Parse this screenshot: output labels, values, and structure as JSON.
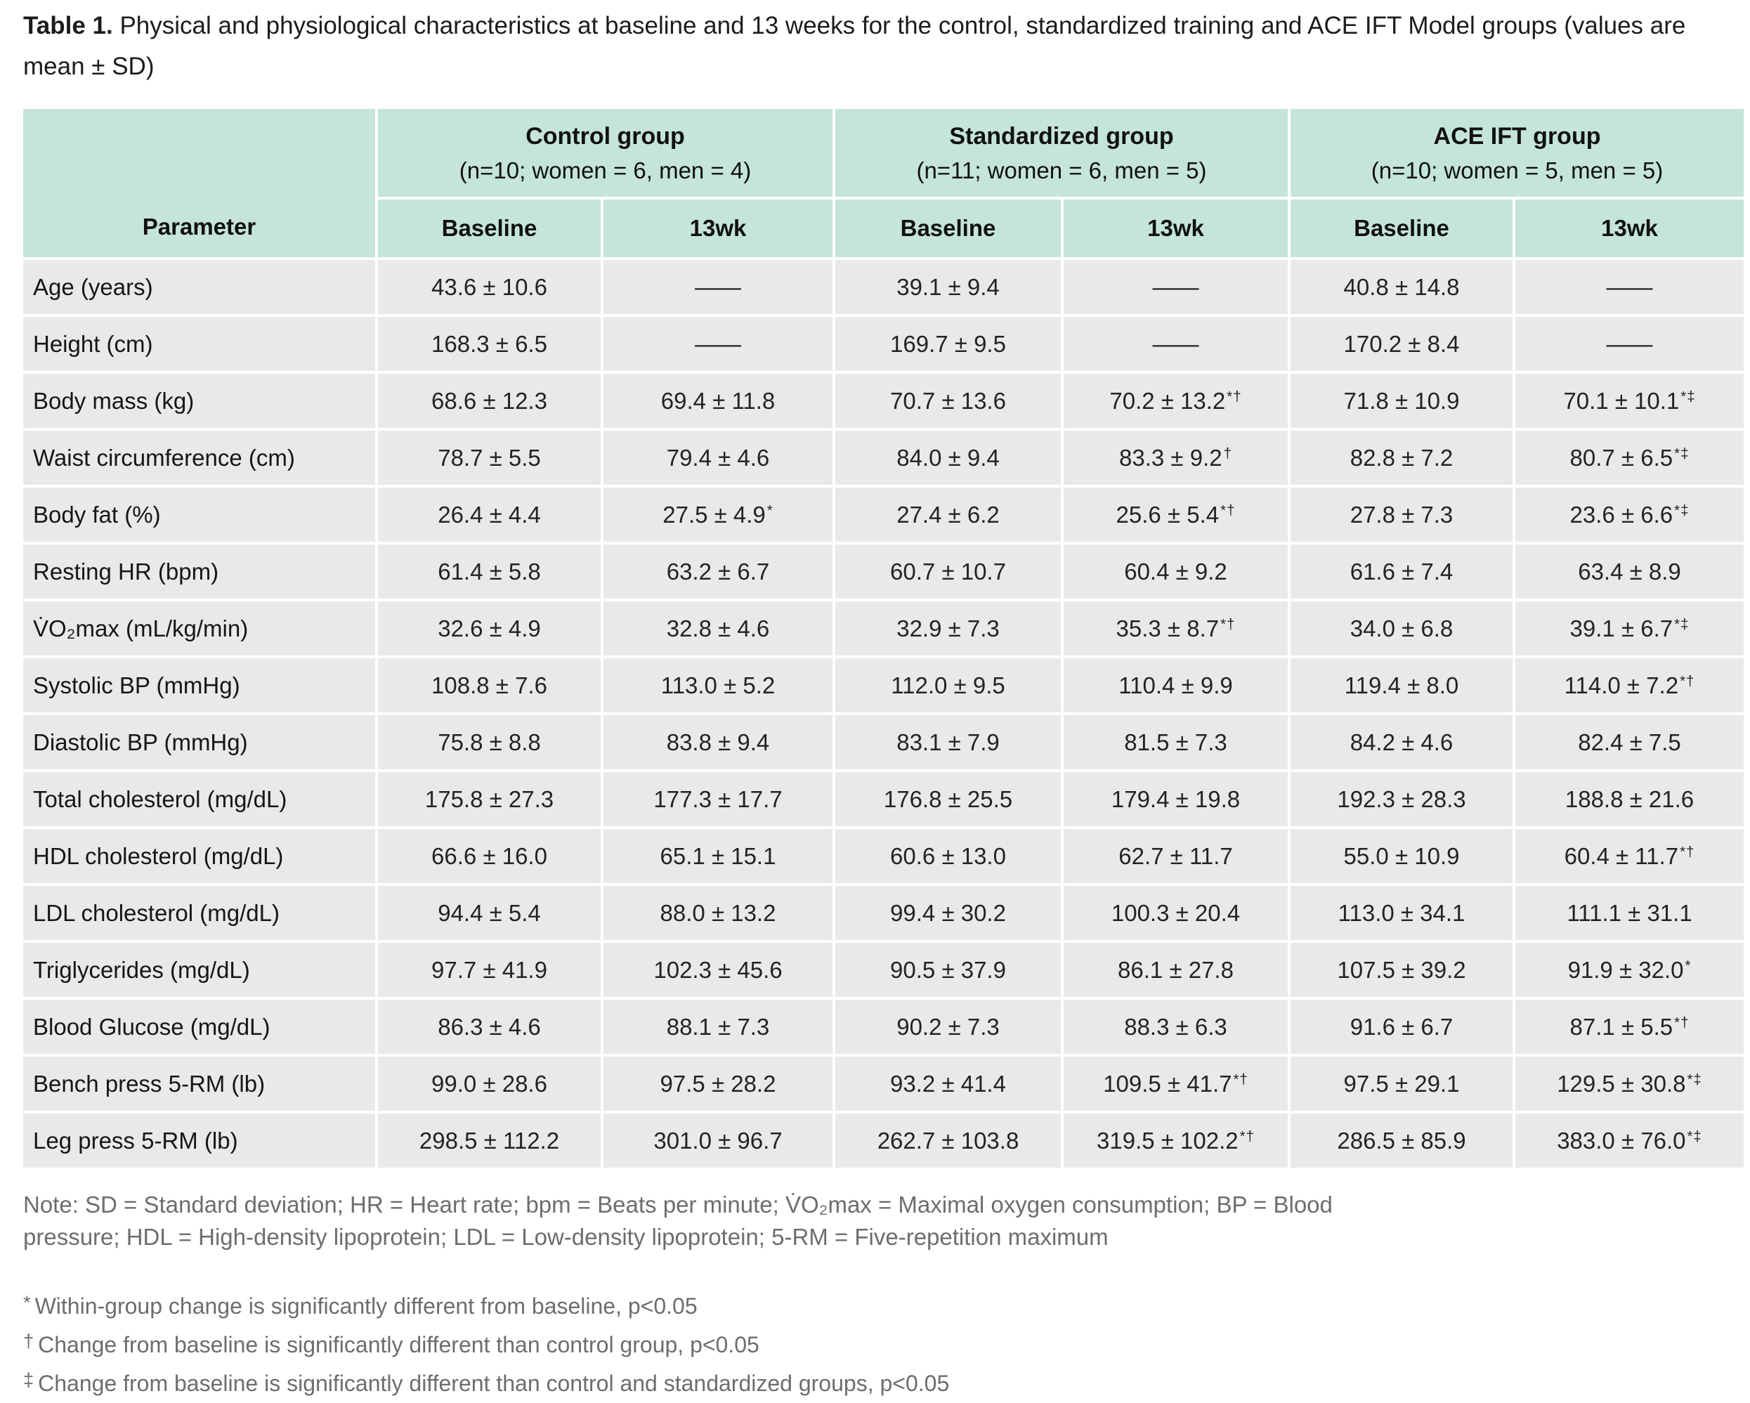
{
  "title": {
    "label": "Table 1.",
    "text": " Physical and physiological characteristics at baseline and 13 weeks for the control, standardized training and ACE IFT Model groups (values are mean ± SD)"
  },
  "table": {
    "parameter_header": "Parameter",
    "groups": [
      {
        "name": "Control group",
        "sub": "(n=10; women = 6, men = 4)"
      },
      {
        "name": "Standardized group",
        "sub": "(n=11; women = 6, men = 5)"
      },
      {
        "name": "ACE IFT group",
        "sub": "(n=10; women = 5, men = 5)"
      }
    ],
    "sub_headers": [
      "Baseline",
      "13wk",
      "Baseline",
      "13wk",
      "Baseline",
      "13wk"
    ],
    "rows": [
      {
        "parameter": "Age (years)",
        "values": [
          "43.6 ± 10.6",
          "——",
          "39.1 ± 9.4",
          "——",
          "40.8 ± 14.8",
          "——"
        ]
      },
      {
        "parameter": "Height (cm)",
        "values": [
          "168.3 ± 6.5",
          "——",
          "169.7 ± 9.5",
          "——",
          "170.2 ± 8.4",
          "——"
        ]
      },
      {
        "parameter": "Body mass (kg)",
        "values": [
          "68.6 ± 12.3",
          "69.4 ± 11.8",
          "70.7 ± 13.6",
          "70.2 ± 13.2*†",
          "71.8 ± 10.9",
          "70.1 ± 10.1*‡"
        ]
      },
      {
        "parameter": "Waist circumference (cm)",
        "values": [
          "78.7 ± 5.5",
          "79.4 ± 4.6",
          "84.0 ± 9.4",
          "83.3 ± 9.2†",
          "82.8 ± 7.2",
          "80.7 ± 6.5*‡"
        ]
      },
      {
        "parameter": "Body fat (%)",
        "values": [
          "26.4 ± 4.4",
          "27.5 ± 4.9*",
          "27.4 ± 6.2",
          "25.6 ± 5.4*†",
          "27.8 ± 7.3",
          "23.6 ± 6.6*‡"
        ]
      },
      {
        "parameter": "Resting HR (bpm)",
        "values": [
          "61.4 ± 5.8",
          "63.2 ± 6.7",
          "60.7 ± 10.7",
          "60.4 ± 9.2",
          "61.6 ± 7.4",
          "63.4 ± 8.9"
        ]
      },
      {
        "parameter": "V̇O₂max (mL/kg/min)",
        "values": [
          "32.6 ± 4.9",
          "32.8 ± 4.6",
          "32.9 ± 7.3",
          "35.3 ± 8.7*†",
          "34.0 ± 6.8",
          "39.1 ± 6.7*‡"
        ]
      },
      {
        "parameter": "Systolic BP (mmHg)",
        "values": [
          "108.8 ± 7.6",
          "113.0 ± 5.2",
          "112.0 ± 9.5",
          "110.4 ± 9.9",
          "119.4 ± 8.0",
          "114.0 ± 7.2*†"
        ]
      },
      {
        "parameter": "Diastolic BP (mmHg)",
        "values": [
          "75.8 ± 8.8",
          "83.8 ± 9.4",
          "83.1 ± 7.9",
          "81.5 ± 7.3",
          "84.2 ± 4.6",
          "82.4 ± 7.5"
        ]
      },
      {
        "parameter": "Total cholesterol (mg/dL)",
        "values": [
          "175.8 ± 27.3",
          "177.3 ± 17.7",
          "176.8 ± 25.5",
          "179.4 ± 19.8",
          "192.3 ± 28.3",
          "188.8 ± 21.6"
        ]
      },
      {
        "parameter": "HDL cholesterol (mg/dL)",
        "values": [
          "66.6 ± 16.0",
          "65.1 ± 15.1",
          "60.6 ± 13.0",
          "62.7 ± 11.7",
          "55.0 ± 10.9",
          "60.4 ± 11.7*†"
        ]
      },
      {
        "parameter": "LDL cholesterol (mg/dL)",
        "values": [
          "94.4 ± 5.4",
          "88.0 ± 13.2",
          "99.4 ± 30.2",
          "100.3 ± 20.4",
          "113.0 ± 34.1",
          "111.1 ± 31.1"
        ]
      },
      {
        "parameter": "Triglycerides (mg/dL)",
        "values": [
          "97.7 ± 41.9",
          "102.3 ± 45.6",
          "90.5 ± 37.9",
          "86.1 ± 27.8",
          "107.5 ± 39.2",
          "91.9 ± 32.0*"
        ]
      },
      {
        "parameter": "Blood Glucose (mg/dL)",
        "values": [
          "86.3 ± 4.6",
          "88.1 ± 7.3",
          "90.2 ± 7.3",
          "88.3 ± 6.3",
          "91.6 ± 6.7",
          "87.1 ± 5.5*†"
        ]
      },
      {
        "parameter": "Bench press 5-RM (lb)",
        "values": [
          "99.0 ± 28.6",
          "97.5 ± 28.2",
          "93.2 ± 41.4",
          "109.5 ± 41.7*†",
          "97.5 ± 29.1",
          "129.5 ± 30.8*‡"
        ]
      },
      {
        "parameter": "Leg press 5-RM (lb)",
        "values": [
          "298.5 ± 112.2",
          "301.0 ± 96.7",
          "262.7 ± 103.8",
          "319.5 ± 102.2*†",
          "286.5 ± 85.9",
          "383.0 ± 76.0*‡"
        ]
      }
    ]
  },
  "note": "Note: SD = Standard deviation; HR = Heart rate; bpm = Beats per minute; V̇O₂max = Maximal oxygen consumption; BP = Blood pressure; HDL = High-density lipoprotein; LDL = Low-density lipoprotein; 5-RM = Five-repetition maximum",
  "footnotes": [
    {
      "marker": "*",
      "text": "Within-group change is significantly different from baseline, p<0.05"
    },
    {
      "marker": "†",
      "text": "Change from baseline is significantly different than control group, p<0.05"
    },
    {
      "marker": "‡",
      "text": "Change from baseline is significantly different than control and standardized groups, p<0.05"
    }
  ],
  "colors": {
    "header_bg": "#c4e4dc",
    "row_bg": "#e9e9e9"
  }
}
